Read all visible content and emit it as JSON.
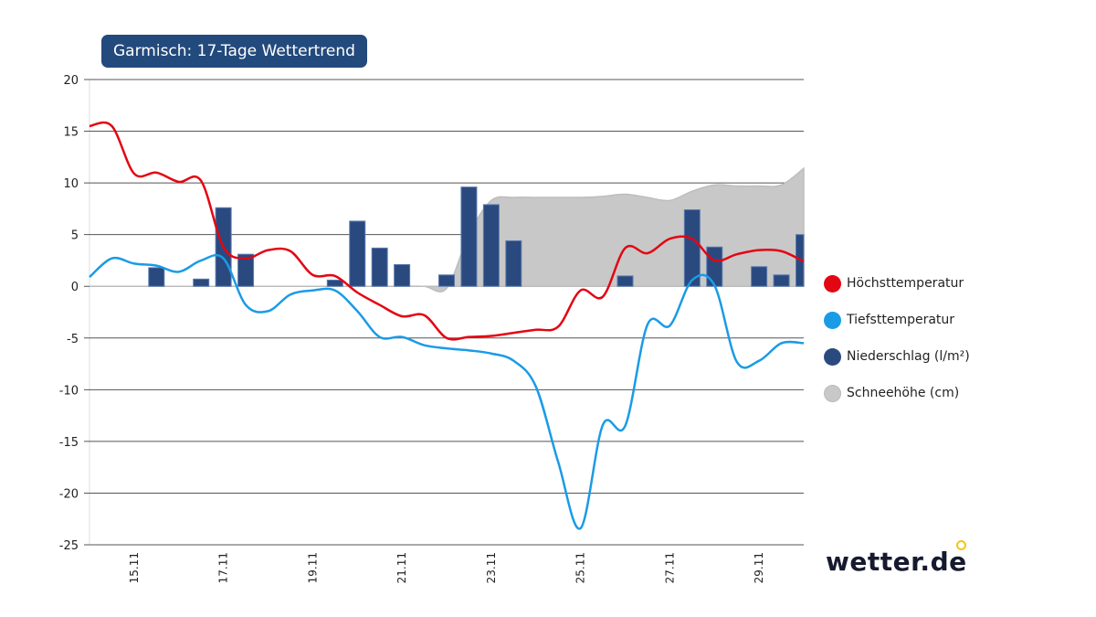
{
  "title": "Garmisch: 17-Tage Wettertrend",
  "legend": [
    {
      "label": "Höchsttemperatur",
      "color": "#e30613"
    },
    {
      "label": "Tiefsttemperatur",
      "color": "#1a9be6"
    },
    {
      "label": "Niederschlag (l/m²)",
      "color": "#2a4a7f"
    },
    {
      "label": "Schneehöhe (cm)",
      "color": "#c8c8c8"
    }
  ],
  "logo": {
    "text": "wetter.de",
    "accent": "#f5c518"
  },
  "chart_data": {
    "type": "line+bar+area",
    "title": "Garmisch: 17-Tage Wettertrend",
    "ylim": [
      -25,
      20
    ],
    "yticks": [
      20,
      15,
      10,
      5,
      0,
      -5,
      -10,
      -15,
      -20,
      -25
    ],
    "grid": true,
    "legend_position": "right",
    "x_unit": "day of November",
    "xlim": [
      14,
      30
    ],
    "xticks": [
      {
        "x": 15,
        "label": "15.11"
      },
      {
        "x": 17,
        "label": "17.11"
      },
      {
        "x": 19,
        "label": "19.11"
      },
      {
        "x": 21,
        "label": "21.11"
      },
      {
        "x": 23,
        "label": "23.11"
      },
      {
        "x": 25,
        "label": "25.11"
      },
      {
        "x": 27,
        "label": "27.11"
      },
      {
        "x": 29,
        "label": "29.11"
      }
    ],
    "x": [
      14,
      14.5,
      15,
      15.5,
      16,
      16.5,
      17,
      17.5,
      18,
      18.5,
      19,
      19.5,
      20,
      20.5,
      21,
      21.5,
      22,
      22.5,
      23,
      23.5,
      24,
      24.5,
      25,
      25.5,
      26,
      26.5,
      27,
      27.5,
      28,
      28.5,
      29,
      29.5,
      30
    ],
    "series": [
      {
        "name": "Höchsttemperatur",
        "type": "line",
        "color": "#e30613",
        "values": [
          15.5,
          15.5,
          10.9,
          11.0,
          10.1,
          10.2,
          3.8,
          2.7,
          3.5,
          3.4,
          1.1,
          1.0,
          -0.6,
          -1.8,
          -2.9,
          -2.8,
          -5.0,
          -4.9,
          -4.8,
          -4.5,
          -4.2,
          -3.9,
          -0.4,
          -1.0,
          3.7,
          3.2,
          4.6,
          4.6,
          2.5,
          3.1,
          3.5,
          3.4,
          2.4
        ]
      },
      {
        "name": "Tiefsttemperatur",
        "type": "line",
        "color": "#1a9be6",
        "values": [
          0.9,
          2.7,
          2.2,
          2.0,
          1.4,
          2.5,
          2.7,
          -1.8,
          -2.4,
          -0.8,
          -0.4,
          -0.4,
          -2.4,
          -4.9,
          -4.9,
          -5.7,
          -6.0,
          -6.2,
          -6.5,
          -7.2,
          -9.7,
          -17.0,
          -23.4,
          -13.4,
          -13.5,
          -3.7,
          -3.8,
          0.6,
          0.1,
          -7.3,
          -7.2,
          -5.5,
          -5.5
        ]
      },
      {
        "name": "Niederschlag (l/m²)",
        "type": "bar",
        "color": "#2a4a7f",
        "values": [
          0,
          0,
          0,
          1.8,
          0,
          0.7,
          7.6,
          3.1,
          0,
          0,
          0,
          0.6,
          6.3,
          3.7,
          2.1,
          0,
          1.1,
          9.6,
          7.9,
          4.4,
          0,
          0,
          0,
          0,
          1.0,
          0,
          0,
          7.4,
          3.8,
          0,
          1.9,
          1.1,
          5.0
        ]
      },
      {
        "name": "Schneehöhe (cm)",
        "type": "area",
        "color": "#c8c8c8",
        "values": [
          0,
          0,
          0,
          0,
          0,
          0,
          0,
          0,
          0,
          0,
          0,
          0,
          0,
          0,
          0,
          0,
          -0.2,
          5.0,
          8.3,
          8.6,
          8.6,
          8.6,
          8.6,
          8.7,
          8.9,
          8.6,
          8.3,
          9.2,
          9.8,
          9.7,
          9.7,
          9.8,
          11.4
        ]
      }
    ]
  }
}
